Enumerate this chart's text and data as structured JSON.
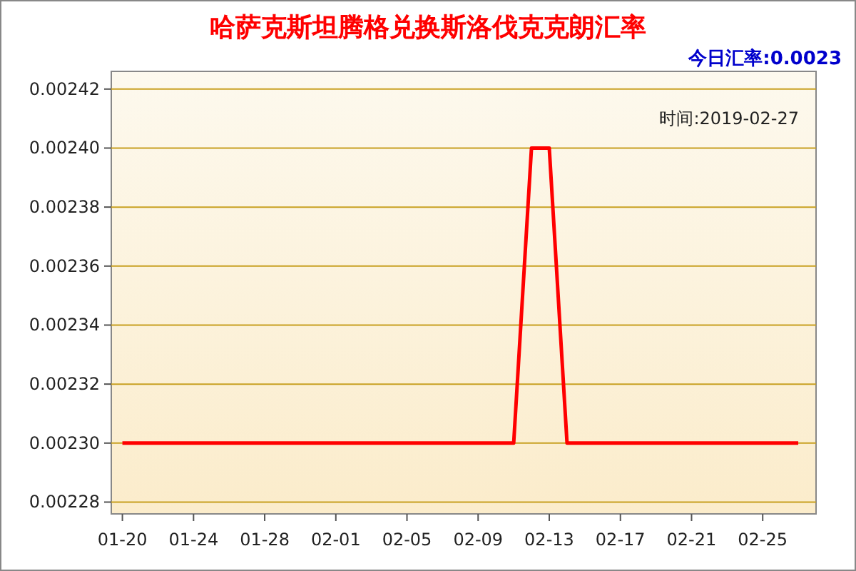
{
  "chart_data": {
    "type": "line",
    "title": "哈萨克斯坦腾格兑换斯洛伐克克朗汇率",
    "annotations": [
      "今日汇率:0.0023",
      "时间:2019-02-27"
    ],
    "x": [
      "2019-01-20",
      "2019-02-11",
      "2019-02-12",
      "2019-02-13",
      "2019-02-14",
      "2019-02-27"
    ],
    "series": [
      {
        "color": "#ff0000",
        "values": [
          0.0023,
          0.0023,
          0.0024,
          0.0024,
          0.0023,
          0.0023
        ]
      }
    ],
    "xlim": [
      "2019-01-19T09:00",
      "2019-02-28"
    ],
    "xticks": [
      {
        "value": "2019-01-20",
        "label": "01-20"
      },
      {
        "value": "2019-01-24",
        "label": "01-24"
      },
      {
        "value": "2019-01-28",
        "label": "01-28"
      },
      {
        "value": "2019-02-01",
        "label": "02-01"
      },
      {
        "value": "2019-02-05",
        "label": "02-05"
      },
      {
        "value": "2019-02-09",
        "label": "02-09"
      },
      {
        "value": "2019-02-13",
        "label": "02-13"
      },
      {
        "value": "2019-02-17",
        "label": "02-17"
      },
      {
        "value": "2019-02-21",
        "label": "02-21"
      },
      {
        "value": "2019-02-25",
        "label": "02-25"
      }
    ],
    "ylim": [
      0.002276,
      0.002426
    ],
    "yticks": [
      {
        "value": 0.00228,
        "label": "0.00228"
      },
      {
        "value": 0.0023,
        "label": "0.00230"
      },
      {
        "value": 0.00232,
        "label": "0.00232"
      },
      {
        "value": 0.00234,
        "label": "0.00234"
      },
      {
        "value": 0.00236,
        "label": "0.00236"
      },
      {
        "value": 0.00238,
        "label": "0.00238"
      },
      {
        "value": 0.0024,
        "label": "0.00240"
      },
      {
        "value": 0.00242,
        "label": "0.00242"
      }
    ],
    "grid": "y",
    "marker": "none",
    "line_style": "solid"
  }
}
